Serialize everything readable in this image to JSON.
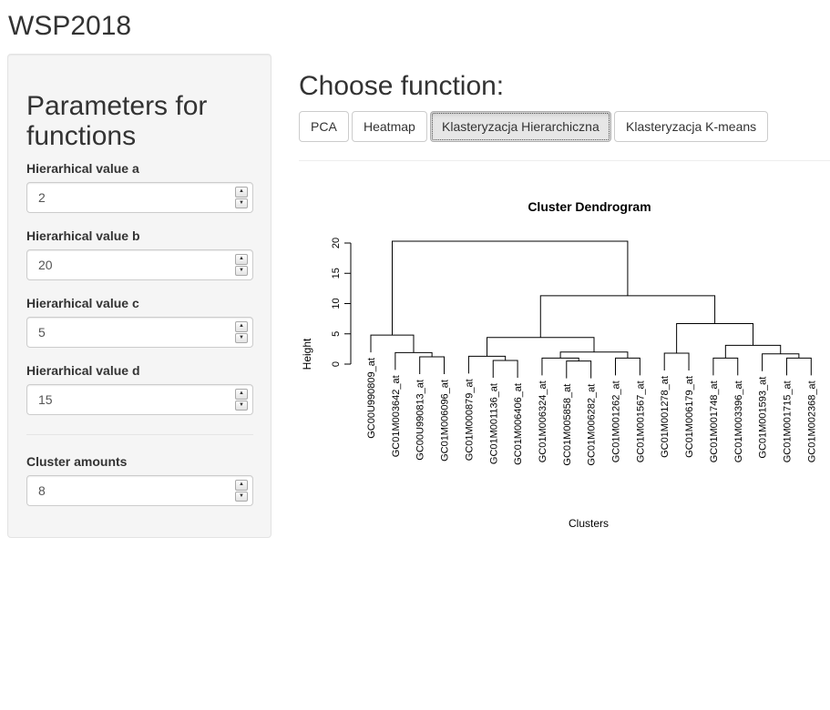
{
  "app": {
    "title": "WSP2018"
  },
  "sidebar": {
    "title": "Parameters for functions",
    "fields": [
      {
        "label": "Hierarhical value a",
        "value": "2"
      },
      {
        "label": "Hierarhical value b",
        "value": "20"
      },
      {
        "label": "Hierarhical value c",
        "value": "5"
      },
      {
        "label": "Hierarhical value d",
        "value": "15"
      },
      {
        "label": "Cluster amounts",
        "value": "8"
      }
    ],
    "spinner": {
      "up": "▲",
      "down": "▼"
    }
  },
  "main": {
    "heading": "Choose function:",
    "tabs": [
      {
        "label": "PCA"
      },
      {
        "label": "Heatmap"
      },
      {
        "label": "Klasteryzacja Hierarchiczna",
        "active": true
      },
      {
        "label": "Klasteryzacja K-means"
      }
    ]
  },
  "chart_data": {
    "type": "dendrogram",
    "title": "Cluster Dendrogram",
    "xlabel": "Clusters",
    "ylabel": "Height",
    "ylim": [
      0,
      20
    ],
    "yticks": [
      "0",
      "5",
      "10",
      "15",
      "20"
    ],
    "leaves": [
      "GC00U990809_at",
      "GC01M003642_at",
      "GC00U990813_at",
      "GC01M006096_at",
      "GC01M000879_at",
      "GC01M001136_at",
      "GC01M006406_at",
      "GC01M006324_at",
      "GC01M005858_at",
      "GC01M006282_at",
      "GC01M001262_at",
      "GC01M001567_at",
      "GC01M001278_at",
      "GC01M006179_at",
      "GC01M001748_at",
      "GC01M003396_at",
      "GC01M001593_at",
      "GC01M001715_at",
      "GC01M002368_at"
    ],
    "merges": [
      {
        "left": 2,
        "right": 3,
        "height": 1.2
      },
      {
        "left": 1,
        "right": "m0",
        "height": 1.9
      },
      {
        "left": 0,
        "right": "m1",
        "height": 4.8
      },
      {
        "left": 5,
        "right": 6,
        "height": 0.6
      },
      {
        "left": 4,
        "right": "m3",
        "height": 1.3
      },
      {
        "left": 8,
        "right": 9,
        "height": 0.5
      },
      {
        "left": 7,
        "right": "m5",
        "height": 1.0
      },
      {
        "left": 10,
        "right": 11,
        "height": 1.0
      },
      {
        "left": "m6",
        "right": "m7",
        "height": 2.0
      },
      {
        "left": "m4",
        "right": "m8",
        "height": 4.4
      },
      {
        "left": 12,
        "right": 13,
        "height": 1.8
      },
      {
        "left": 14,
        "right": 15,
        "height": 1.0
      },
      {
        "left": 17,
        "right": 18,
        "height": 1.0
      },
      {
        "left": 16,
        "right": "m12",
        "height": 1.7
      },
      {
        "left": "m11",
        "right": "m13",
        "height": 3.1
      },
      {
        "left": "m10",
        "right": "m14",
        "height": 6.7
      },
      {
        "left": "m9",
        "right": "m15",
        "height": 11.3
      },
      {
        "left": "m2",
        "right": "m16",
        "height": 20.3
      }
    ]
  }
}
